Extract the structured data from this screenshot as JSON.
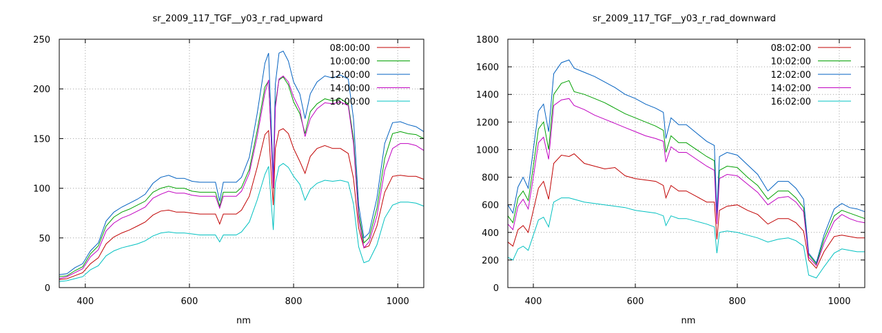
{
  "chart_data": [
    {
      "type": "line",
      "title": "sr_2009_117_TGF__y03_r_rad_upward",
      "xlabel": "nm",
      "ylabel": "",
      "xlim": [
        350,
        1050
      ],
      "ylim": [
        0,
        250
      ],
      "xticks": [
        400,
        600,
        800,
        1000
      ],
      "yticks": [
        0,
        50,
        100,
        150,
        200,
        250
      ],
      "grid": true,
      "legend": "top-right",
      "x": [
        350,
        365,
        380,
        395,
        410,
        425,
        440,
        455,
        470,
        485,
        500,
        515,
        530,
        545,
        560,
        575,
        590,
        605,
        620,
        635,
        650,
        658,
        665,
        680,
        690,
        700,
        715,
        730,
        745,
        752,
        757,
        761,
        765,
        772,
        780,
        790,
        800,
        812,
        822,
        832,
        845,
        860,
        875,
        890,
        905,
        915,
        925,
        935,
        945,
        960,
        975,
        990,
        1005,
        1020,
        1035,
        1050
      ],
      "series": [
        {
          "name": "08:00:00",
          "color": "#c00000",
          "values": [
            8,
            9,
            12,
            15,
            24,
            30,
            44,
            51,
            55,
            58,
            62,
            66,
            73,
            77,
            78,
            76,
            76,
            75,
            74,
            74,
            74,
            64,
            74,
            74,
            74,
            78,
            92,
            121,
            154,
            158,
            115,
            83,
            140,
            158,
            160,
            155,
            140,
            127,
            115,
            132,
            140,
            143,
            140,
            140,
            135,
            110,
            60,
            40,
            42,
            62,
            96,
            112,
            113,
            112,
            112,
            109
          ]
        },
        {
          "name": "10:00:00",
          "color": "#00a000",
          "values": [
            11,
            12,
            17,
            21,
            34,
            42,
            62,
            71,
            76,
            79,
            83,
            87,
            96,
            100,
            102,
            100,
            100,
            97,
            96,
            96,
            96,
            82,
            96,
            96,
            96,
            101,
            119,
            158,
            202,
            208,
            150,
            103,
            185,
            209,
            212,
            204,
            187,
            175,
            155,
            177,
            185,
            190,
            188,
            190,
            185,
            150,
            75,
            45,
            50,
            80,
            130,
            155,
            157,
            155,
            154,
            150
          ]
        },
        {
          "name": "12:00:00",
          "color": "#0060c0",
          "values": [
            13,
            14,
            20,
            24,
            37,
            45,
            67,
            76,
            81,
            85,
            89,
            94,
            105,
            111,
            113,
            110,
            110,
            107,
            106,
            106,
            106,
            87,
            106,
            106,
            106,
            111,
            131,
            175,
            226,
            236,
            165,
            110,
            205,
            236,
            238,
            228,
            207,
            195,
            170,
            195,
            207,
            213,
            211,
            214,
            210,
            170,
            83,
            50,
            55,
            90,
            145,
            166,
            167,
            164,
            162,
            157
          ]
        },
        {
          "name": "14:00:00",
          "color": "#c000c0",
          "values": [
            9,
            11,
            15,
            19,
            31,
            38,
            57,
            65,
            70,
            73,
            77,
            81,
            90,
            94,
            97,
            95,
            95,
            93,
            92,
            92,
            92,
            80,
            92,
            92,
            92,
            97,
            115,
            152,
            196,
            209,
            148,
            100,
            181,
            210,
            213,
            207,
            192,
            179,
            152,
            170,
            180,
            186,
            185,
            187,
            183,
            145,
            70,
            40,
            46,
            72,
            118,
            140,
            145,
            145,
            143,
            138
          ]
        },
        {
          "name": "16:00:00",
          "color": "#00c0c0",
          "values": [
            6,
            7,
            9,
            11,
            18,
            22,
            32,
            37,
            40,
            42,
            44,
            47,
            52,
            55,
            56,
            55,
            55,
            54,
            53,
            53,
            53,
            46,
            53,
            53,
            53,
            56,
            66,
            88,
            114,
            122,
            86,
            58,
            105,
            122,
            125,
            121,
            112,
            104,
            88,
            99,
            105,
            108,
            107,
            108,
            106,
            84,
            41,
            25,
            27,
            43,
            70,
            83,
            86,
            86,
            85,
            82
          ]
        }
      ]
    },
    {
      "type": "line",
      "title": "sr_2009_117_TGF__y03_r_rad_downward",
      "xlabel": "nm",
      "ylabel": "",
      "xlim": [
        350,
        1050
      ],
      "ylim": [
        0,
        1800
      ],
      "xticks": [
        400,
        600,
        800,
        1000
      ],
      "yticks": [
        0,
        200,
        400,
        600,
        800,
        1000,
        1200,
        1400,
        1600,
        1800
      ],
      "grid": true,
      "legend": "top-right",
      "x": [
        350,
        360,
        370,
        380,
        390,
        400,
        410,
        420,
        430,
        440,
        455,
        470,
        480,
        500,
        520,
        540,
        560,
        580,
        600,
        620,
        640,
        655,
        660,
        670,
        685,
        700,
        720,
        740,
        755,
        760,
        765,
        780,
        800,
        820,
        840,
        860,
        880,
        900,
        915,
        930,
        940,
        955,
        970,
        990,
        1005,
        1020,
        1035,
        1050
      ],
      "series": [
        {
          "name": "08:02:00",
          "color": "#c00000",
          "values": [
            330,
            300,
            420,
            450,
            400,
            560,
            720,
            770,
            640,
            900,
            960,
            950,
            970,
            900,
            880,
            860,
            870,
            810,
            790,
            780,
            770,
            740,
            650,
            740,
            700,
            700,
            660,
            620,
            620,
            350,
            560,
            590,
            600,
            560,
            530,
            460,
            500,
            500,
            470,
            410,
            200,
            140,
            260,
            370,
            380,
            370,
            360,
            360
          ]
        },
        {
          "name": "10:02:00",
          "color": "#00a000",
          "values": [
            520,
            470,
            650,
            700,
            630,
            880,
            1150,
            1200,
            1000,
            1400,
            1480,
            1500,
            1420,
            1400,
            1370,
            1340,
            1300,
            1260,
            1230,
            1200,
            1170,
            1140,
            980,
            1100,
            1050,
            1050,
            1000,
            950,
            920,
            500,
            850,
            880,
            870,
            800,
            740,
            640,
            700,
            700,
            650,
            580,
            240,
            170,
            350,
            520,
            560,
            540,
            520,
            500
          ]
        },
        {
          "name": "12:02:00",
          "color": "#0060c0",
          "values": [
            600,
            540,
            730,
            800,
            720,
            1000,
            1280,
            1330,
            1130,
            1550,
            1630,
            1650,
            1590,
            1560,
            1530,
            1490,
            1450,
            1400,
            1370,
            1330,
            1300,
            1270,
            1080,
            1230,
            1180,
            1180,
            1120,
            1060,
            1030,
            540,
            950,
            980,
            960,
            890,
            820,
            700,
            770,
            770,
            720,
            640,
            250,
            180,
            380,
            570,
            610,
            580,
            570,
            550
          ]
        },
        {
          "name": "14:02:00",
          "color": "#c000c0",
          "values": [
            460,
            420,
            590,
            640,
            570,
            800,
            1050,
            1090,
            930,
            1320,
            1360,
            1370,
            1320,
            1290,
            1250,
            1220,
            1190,
            1160,
            1130,
            1100,
            1080,
            1060,
            910,
            1020,
            980,
            980,
            930,
            880,
            850,
            460,
            790,
            820,
            810,
            750,
            690,
            600,
            650,
            660,
            620,
            550,
            220,
            160,
            320,
            480,
            530,
            500,
            480,
            470
          ]
        },
        {
          "name": "16:02:00",
          "color": "#00c0c0",
          "values": [
            220,
            200,
            280,
            300,
            270,
            380,
            490,
            510,
            440,
            620,
            650,
            650,
            640,
            620,
            610,
            600,
            590,
            580,
            560,
            550,
            540,
            520,
            450,
            520,
            500,
            500,
            480,
            460,
            440,
            250,
            400,
            410,
            400,
            380,
            360,
            330,
            350,
            360,
            340,
            300,
            90,
            70,
            150,
            250,
            280,
            270,
            260,
            260
          ]
        }
      ]
    }
  ]
}
